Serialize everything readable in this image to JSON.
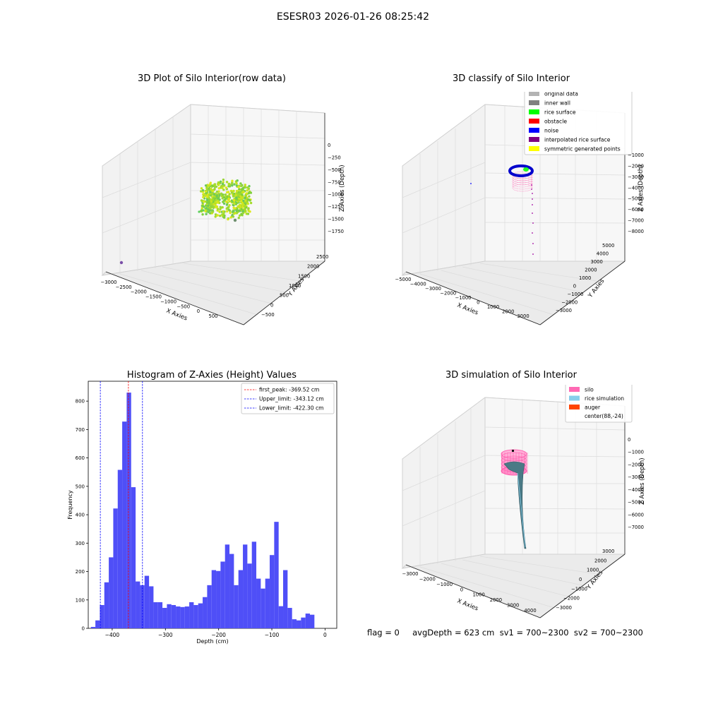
{
  "figure": {
    "suptitle": "ESESR03 2026-01-26 08:25:42"
  },
  "status_line": "flag = 0     avgDepth = 623 cm  sv1 = 700~2300  sv2 = 700~2300",
  "chart_data": [
    {
      "id": "raw",
      "type": "scatter3d",
      "title": "3D Plot of Silo Interior(row data)",
      "xlabel": "X Axies",
      "ylabel": "Y Axies",
      "zlabel": "Z Axies (Depth)",
      "x_ticks": [
        "−3000",
        "−2500",
        "−2000",
        "−1500",
        "−1000",
        "−500",
        "0",
        "500"
      ],
      "y_ticks": [
        "−500",
        "0",
        "500",
        "1000",
        "1500",
        "2000",
        "2500"
      ],
      "z_ticks": [
        "0",
        "−250",
        "−500",
        "−750",
        "−1000",
        "−1250",
        "−1500",
        "−1750"
      ],
      "colors": [
        "#7fd13b",
        "#a6dc2a",
        "#c9e51e",
        "#dde81a",
        "#9ad63a",
        "#6cc95a"
      ]
    },
    {
      "id": "classify",
      "type": "scatter3d",
      "title": "3D classify of Silo Interior",
      "xlabel": "X Axies",
      "ylabel": "Y Axies",
      "zlabel": "Z Axies (Depth)",
      "x_ticks": [
        "−5000",
        "−4000",
        "−3000",
        "−2000",
        "−1000",
        "0",
        "1000",
        "2000",
        "3000"
      ],
      "y_ticks": [
        "−3000",
        "−2000",
        "−1000",
        "0",
        "1000",
        "2000",
        "3000",
        "4000",
        "5000"
      ],
      "z_ticks": [
        "−1000",
        "−2000",
        "−3000",
        "−4000",
        "−5000",
        "−6000",
        "−7000",
        "−8000"
      ],
      "legend": [
        {
          "label": "original data",
          "color": "#b3b3b3"
        },
        {
          "label": "inner wall",
          "color": "#808080"
        },
        {
          "label": "rice surface",
          "color": "#00ff00"
        },
        {
          "label": "obstacle",
          "color": "#ff0000"
        },
        {
          "label": "noise",
          "color": "#0000ff"
        },
        {
          "label": "interpolated rice surface",
          "color": "#800080"
        },
        {
          "label": "symmetric generated points",
          "color": "#ffff00"
        }
      ]
    },
    {
      "id": "histogram",
      "type": "bar",
      "title": "Histogram of Z-Axies (Height) Values",
      "xlabel": "Depth (cm)",
      "ylabel": "Frequency",
      "xlim": [
        -445,
        22
      ],
      "ylim": [
        0,
        870
      ],
      "x_ticks": [
        -400,
        -300,
        -200,
        -100,
        0
      ],
      "y_ticks": [
        0,
        100,
        200,
        300,
        400,
        500,
        600,
        700,
        800
      ],
      "bin_width": 8.4,
      "bin_start": -440,
      "values": [
        5,
        28,
        82,
        162,
        250,
        422,
        558,
        728,
        830,
        497,
        165,
        152,
        185,
        148,
        92,
        92,
        72,
        85,
        82,
        77,
        75,
        77,
        92,
        82,
        88,
        110,
        152,
        205,
        202,
        235,
        295,
        262,
        152,
        205,
        295,
        228,
        305,
        175,
        140,
        175,
        258,
        375,
        78,
        205,
        72,
        32,
        28,
        38,
        52,
        48
      ],
      "bar_color": "#4f4ff7",
      "lines": [
        {
          "label": "first_peak: -369.52 cm",
          "x": -369.52,
          "color": "#ff0000"
        },
        {
          "label": "Upper_limit: -343.12 cm",
          "x": -343.12,
          "color": "#0000ff"
        },
        {
          "label": "Lower_limit: -422.30 cm",
          "x": -422.3,
          "color": "#0000ff"
        }
      ]
    },
    {
      "id": "simulation",
      "type": "surface3d",
      "title": "3D simulation of Silo Interior",
      "xlabel": "X Axies",
      "ylabel": "Y Axies",
      "zlabel": "Z Axies (Depth)",
      "x_ticks": [
        "−3000",
        "−2000",
        "−1000",
        "0",
        "1000",
        "2000",
        "3000",
        "4000"
      ],
      "y_ticks": [
        "−3000",
        "−2000",
        "−1000",
        "0",
        "1000",
        "2000",
        "3000"
      ],
      "z_ticks": [
        "0",
        "−1000",
        "−2000",
        "−3000",
        "−4000",
        "−5000",
        "−6000",
        "−7000"
      ],
      "legend": [
        {
          "label": "silo",
          "color": "#ff69b4"
        },
        {
          "label": "rice simulation",
          "color": "#87ceeb"
        },
        {
          "label": "auger",
          "color": "#ff4500"
        },
        {
          "label": "center(88,-24)",
          "color": "none"
        }
      ]
    }
  ]
}
